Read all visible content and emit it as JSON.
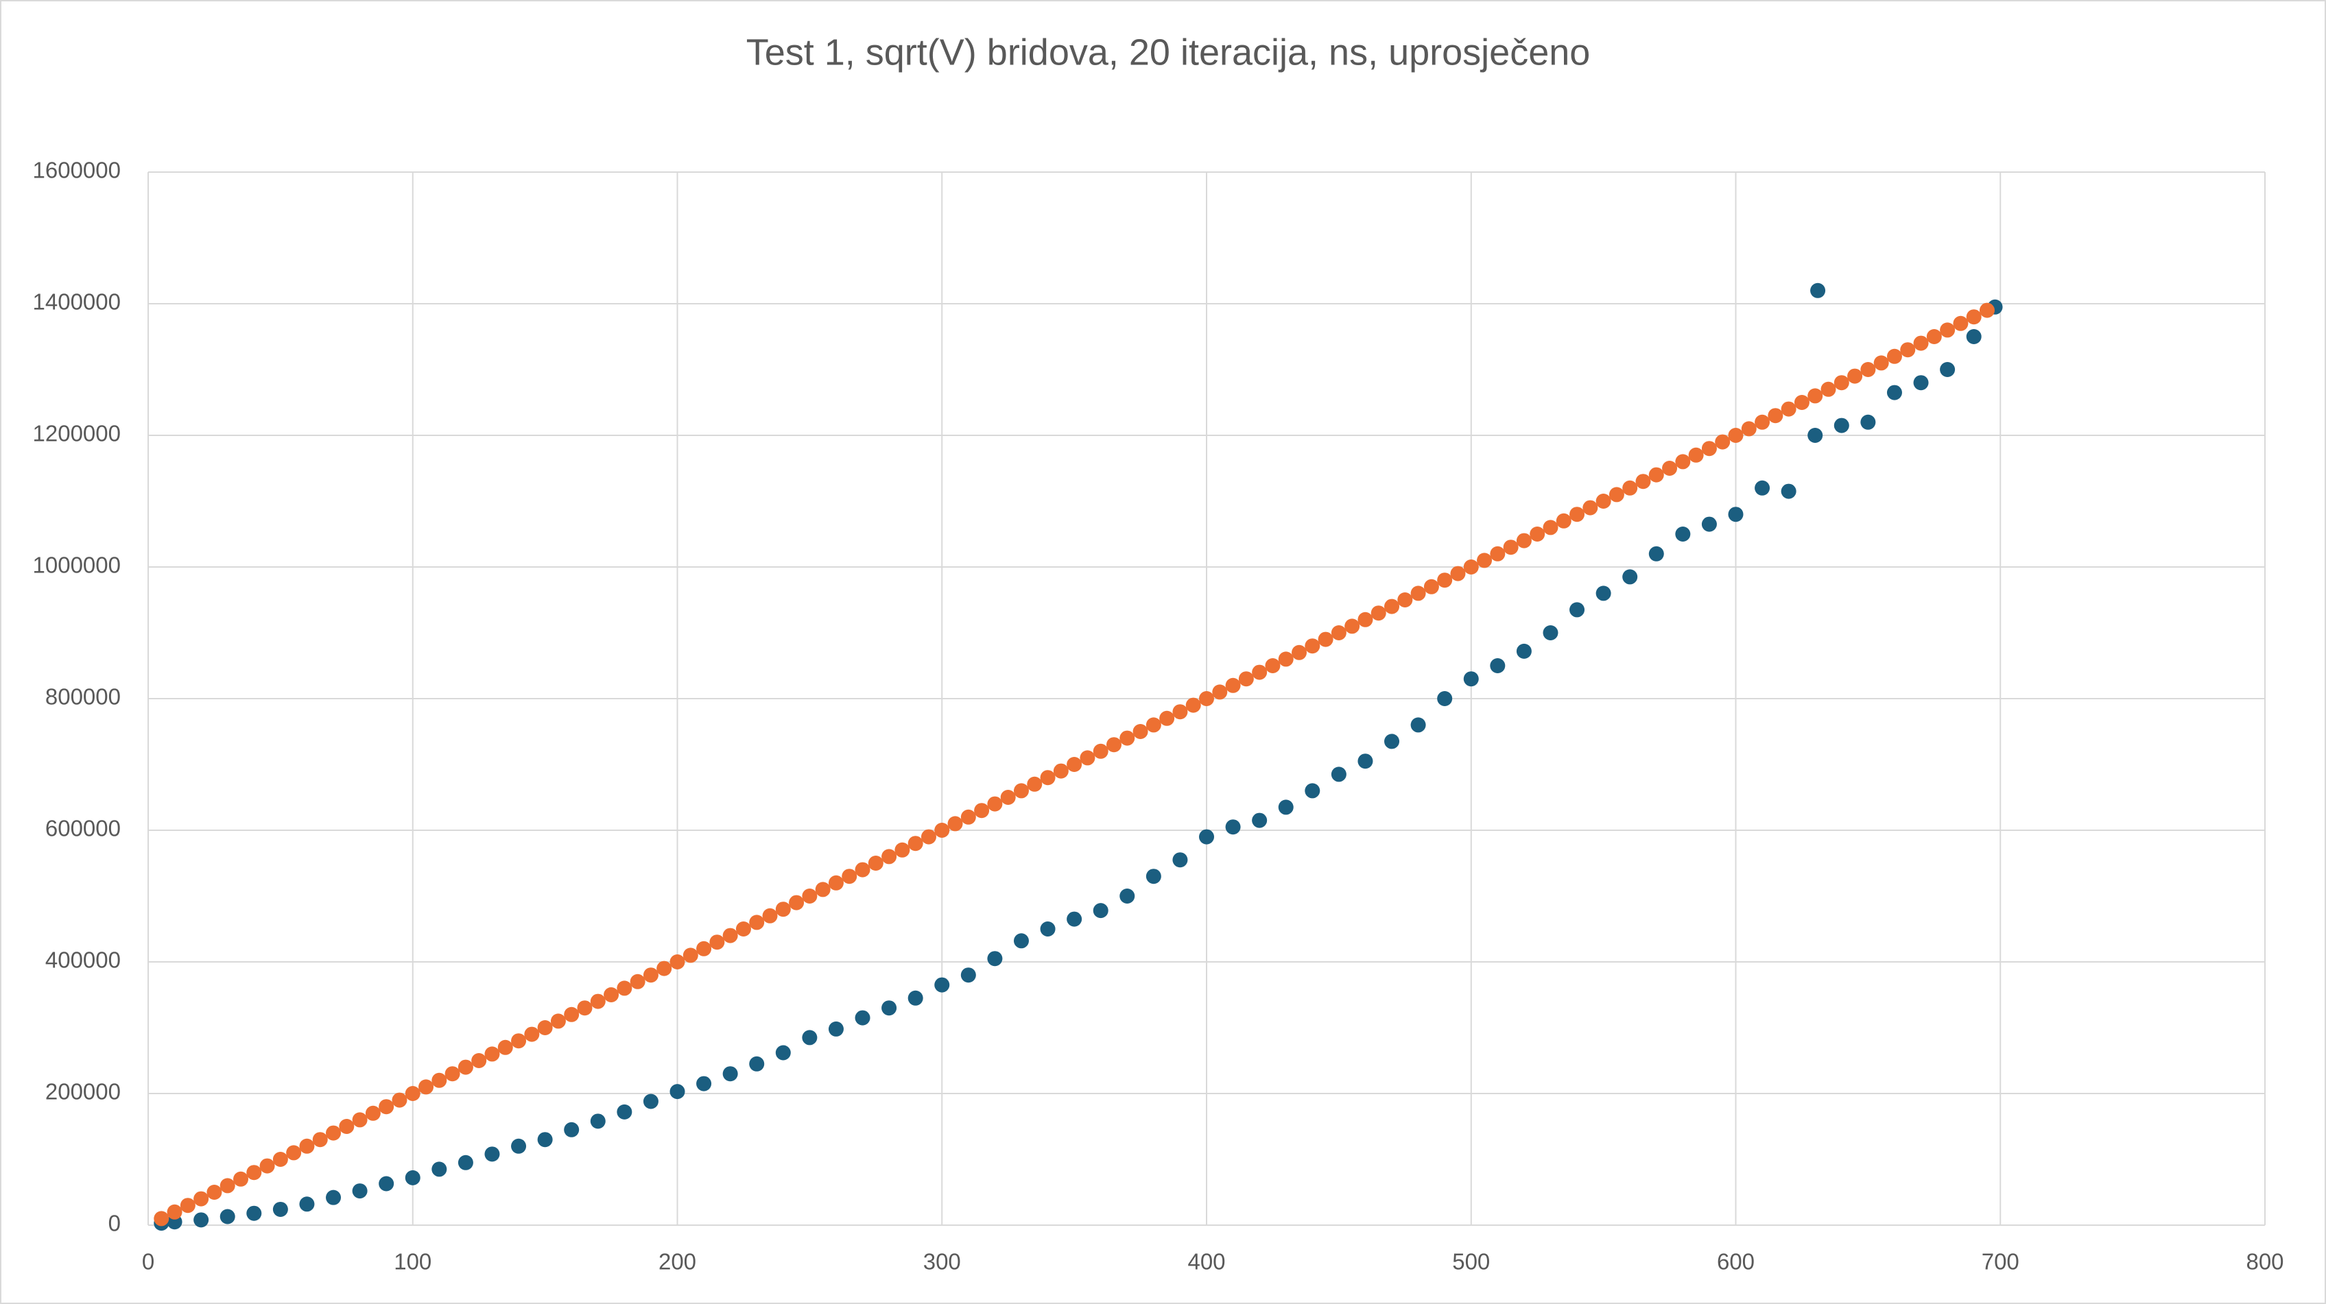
{
  "chart_data": {
    "type": "scatter",
    "title": "Test 1, sqrt(V) bridova, 20 iteracija, ns, uprosječeno",
    "xlim": [
      0,
      800
    ],
    "xticks": [
      0,
      100,
      200,
      300,
      400,
      500,
      600,
      700,
      800
    ],
    "ylim": [
      0,
      1600000
    ],
    "yticks": [
      0,
      200000,
      400000,
      600000,
      800000,
      1000000,
      1200000,
      1400000,
      1600000
    ],
    "grid": true,
    "series": [
      {
        "color": "#1b5e80",
        "x": [
          5,
          10,
          20,
          30,
          40,
          50,
          60,
          70,
          80,
          90,
          100,
          110,
          120,
          130,
          140,
          150,
          160,
          170,
          180,
          190,
          200,
          210,
          220,
          230,
          240,
          250,
          260,
          270,
          280,
          290,
          300,
          310,
          320,
          330,
          340,
          350,
          360,
          370,
          380,
          390,
          400,
          410,
          420,
          430,
          440,
          450,
          460,
          470,
          480,
          490,
          500,
          510,
          520,
          530,
          540,
          550,
          560,
          570,
          580,
          590,
          600,
          610,
          620,
          630,
          631,
          640,
          650,
          660,
          670,
          680,
          690,
          698
        ],
        "values": [
          3000,
          5000,
          8000,
          13000,
          18000,
          24000,
          32000,
          42000,
          52000,
          63000,
          72000,
          85000,
          95000,
          108000,
          120000,
          130000,
          145000,
          158000,
          172000,
          188000,
          203000,
          215000,
          230000,
          245000,
          262000,
          285000,
          298000,
          315000,
          330000,
          345000,
          365000,
          380000,
          405000,
          432000,
          450000,
          465000,
          478000,
          500000,
          530000,
          555000,
          590000,
          605000,
          615000,
          635000,
          660000,
          685000,
          705000,
          735000,
          760000,
          800000,
          830000,
          850000,
          872000,
          900000,
          935000,
          960000,
          985000,
          1020000,
          1050000,
          1065000,
          1080000,
          1120000,
          1115000,
          1200000,
          1420000,
          1215000,
          1220000,
          1265000,
          1280000,
          1300000,
          1350000,
          1395000
        ]
      },
      {
        "color": "#ed7032",
        "x": [
          5,
          10,
          15,
          20,
          25,
          30,
          35,
          40,
          45,
          50,
          55,
          60,
          65,
          70,
          75,
          80,
          85,
          90,
          95,
          100,
          105,
          110,
          115,
          120,
          125,
          130,
          135,
          140,
          145,
          150,
          155,
          160,
          165,
          170,
          175,
          180,
          185,
          190,
          195,
          200,
          205,
          210,
          215,
          220,
          225,
          230,
          235,
          240,
          245,
          250,
          255,
          260,
          265,
          270,
          275,
          280,
          285,
          290,
          295,
          300,
          305,
          310,
          315,
          320,
          325,
          330,
          335,
          340,
          345,
          350,
          355,
          360,
          365,
          370,
          375,
          380,
          385,
          390,
          395,
          400,
          405,
          410,
          415,
          420,
          425,
          430,
          435,
          440,
          445,
          450,
          455,
          460,
          465,
          470,
          475,
          480,
          485,
          490,
          495,
          500,
          505,
          510,
          515,
          520,
          525,
          530,
          535,
          540,
          545,
          550,
          555,
          560,
          565,
          570,
          575,
          580,
          585,
          590,
          595,
          600,
          605,
          610,
          615,
          620,
          625,
          630,
          635,
          640,
          645,
          650,
          655,
          660,
          665,
          670,
          675,
          680,
          685,
          690,
          695
        ],
        "values": [
          10000,
          20000,
          30000,
          40000,
          50000,
          60000,
          70000,
          80000,
          90000,
          100000,
          110000,
          120000,
          130000,
          140000,
          150000,
          160000,
          170000,
          180000,
          190000,
          200000,
          210000,
          220000,
          230000,
          240000,
          250000,
          260000,
          270000,
          280000,
          290000,
          300000,
          310000,
          320000,
          330000,
          340000,
          350000,
          360000,
          370000,
          380000,
          390000,
          400000,
          410000,
          420000,
          430000,
          440000,
          450000,
          460000,
          470000,
          480000,
          490000,
          500000,
          510000,
          520000,
          530000,
          540000,
          550000,
          560000,
          570000,
          580000,
          590000,
          600000,
          610000,
          620000,
          630000,
          640000,
          650000,
          660000,
          670000,
          680000,
          690000,
          700000,
          710000,
          720000,
          730000,
          740000,
          750000,
          760000,
          770000,
          780000,
          790000,
          800000,
          810000,
          820000,
          830000,
          840000,
          850000,
          860000,
          870000,
          880000,
          890000,
          900000,
          910000,
          920000,
          930000,
          940000,
          950000,
          960000,
          970000,
          980000,
          990000,
          1000000,
          1010000,
          1020000,
          1030000,
          1040000,
          1050000,
          1060000,
          1070000,
          1080000,
          1090000,
          1100000,
          1110000,
          1120000,
          1130000,
          1140000,
          1150000,
          1160000,
          1170000,
          1180000,
          1190000,
          1200000,
          1210000,
          1220000,
          1230000,
          1240000,
          1250000,
          1260000,
          1270000,
          1280000,
          1290000,
          1300000,
          1310000,
          1320000,
          1330000,
          1340000,
          1350000,
          1360000,
          1370000,
          1380000,
          1390000
        ]
      }
    ]
  }
}
